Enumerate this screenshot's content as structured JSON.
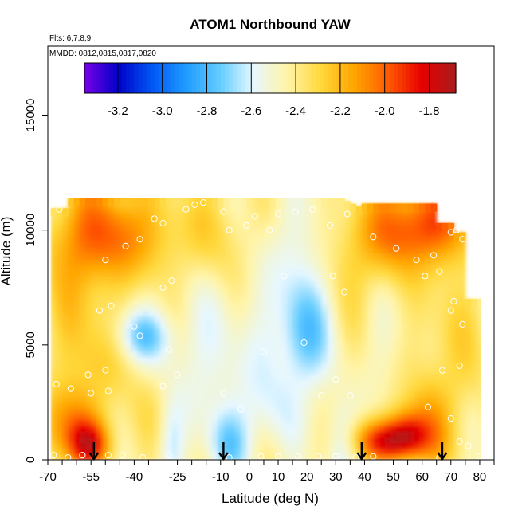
{
  "chart_data": {
    "type": "heatmap",
    "title": "ATOM1 Northbound YAW",
    "flights_label": "Flts: 6,7,8,9",
    "dates_label": "MMDD: 0812,0815,0817,0820",
    "xlabel": "Latitude (deg N)",
    "ylabel": "Altitude (m)",
    "xlim": [
      -70,
      85
    ],
    "ylim": [
      0,
      18000
    ],
    "x_ticks": [
      -70,
      -55,
      -40,
      -25,
      -10,
      0,
      10,
      20,
      30,
      40,
      50,
      60,
      70,
      80
    ],
    "x_tick_labels": [
      "-70",
      "-55",
      "-40",
      "-25",
      "-10",
      "0",
      "10",
      "20",
      "30",
      "40",
      "50",
      "60",
      "70",
      "80"
    ],
    "x_minor_ticks": [
      -65,
      -60,
      -50,
      -45,
      -35,
      -30,
      -20,
      -15,
      -5,
      5,
      15,
      25,
      35,
      45,
      55,
      65,
      75,
      85
    ],
    "y_ticks": [
      0,
      5000,
      10000,
      15000
    ],
    "y_tick_labels": [
      "0",
      "5000",
      "10000",
      "15000"
    ],
    "colorbar": {
      "min": -3.35,
      "max": -1.68,
      "ticks": [
        -3.2,
        -3.0,
        -2.8,
        -2.6,
        -2.4,
        -2.2,
        -2.0,
        -1.8
      ],
      "tick_labels": [
        "-3.2",
        "-3.0",
        "-2.8",
        "-2.6",
        "-2.4",
        "-2.2",
        "-2.0",
        "-1.8"
      ],
      "colors": [
        "#7B00E6",
        "#0000C8",
        "#0057F5",
        "#1F9BFF",
        "#63CCFF",
        "#E6F7FF",
        "#FFF4A8",
        "#FFD83A",
        "#FFA500",
        "#FF5A00",
        "#E60000",
        "#A81C1C"
      ]
    },
    "profile_arrows_lat": [
      -54,
      -9,
      39,
      67
    ],
    "grid": false,
    "legend": "top-center colorbar"
  }
}
